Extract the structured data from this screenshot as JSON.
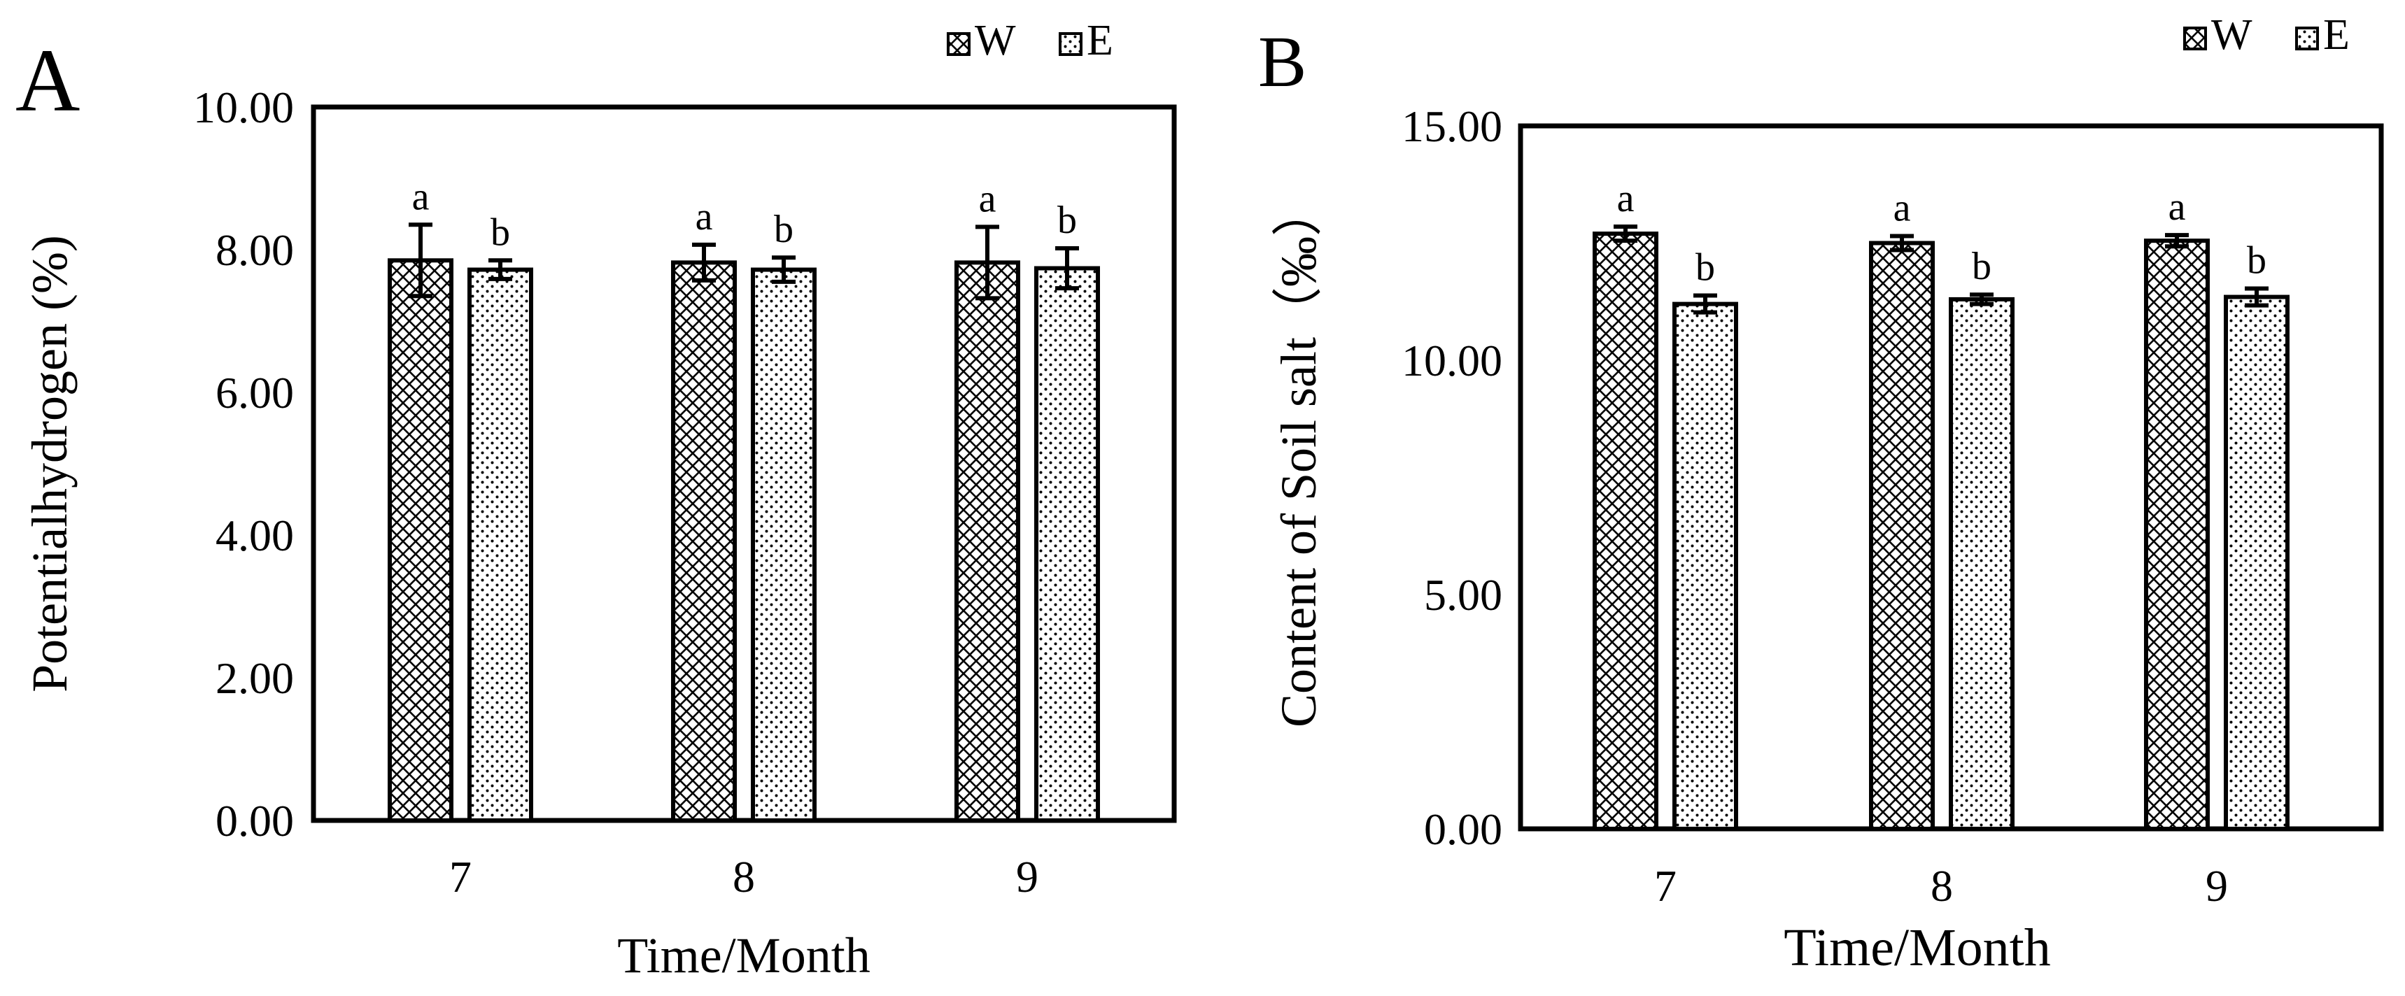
{
  "chart_data": [
    {
      "type": "bar",
      "panel_label": "A",
      "title": "",
      "xlabel": "Time/Month",
      "ylabel": "Potentialhydrogen (%)",
      "categories": [
        "7",
        "8",
        "9"
      ],
      "ylim": [
        0,
        10
      ],
      "yticks": [
        "0.00",
        "2.00",
        "4.00",
        "6.00",
        "8.00",
        "10.00"
      ],
      "legend": {
        "position": "top-right",
        "entries": [
          "W",
          "E"
        ]
      },
      "series": [
        {
          "name": "W",
          "pattern": "crosshatch",
          "values": [
            7.85,
            7.82,
            7.82
          ],
          "errors": [
            0.5,
            0.25,
            0.5
          ],
          "labels": [
            "a",
            "a",
            "a"
          ]
        },
        {
          "name": "E",
          "pattern": "dots",
          "values": [
            7.72,
            7.72,
            7.74
          ],
          "errors": [
            0.13,
            0.17,
            0.28
          ],
          "labels": [
            "b",
            "b",
            "b"
          ]
        }
      ]
    },
    {
      "type": "bar",
      "panel_label": "B",
      "title": "",
      "xlabel": "Time/Month",
      "ylabel": "Content of Soil salt（‰）",
      "categories": [
        "7",
        "8",
        "9"
      ],
      "ylim": [
        0,
        15
      ],
      "yticks": [
        "0.00",
        "5.00",
        "10.00",
        "15.00"
      ],
      "legend": {
        "position": "top-right",
        "entries": [
          "W",
          "E"
        ]
      },
      "series": [
        {
          "name": "W",
          "pattern": "crosshatch",
          "values": [
            12.7,
            12.5,
            12.55
          ],
          "errors": [
            0.15,
            0.15,
            0.12
          ],
          "labels": [
            "a",
            "a",
            "a"
          ]
        },
        {
          "name": "E",
          "pattern": "dots",
          "values": [
            11.2,
            11.3,
            11.35
          ],
          "errors": [
            0.18,
            0.1,
            0.18
          ],
          "labels": [
            "b",
            "b",
            "b"
          ]
        }
      ]
    }
  ]
}
